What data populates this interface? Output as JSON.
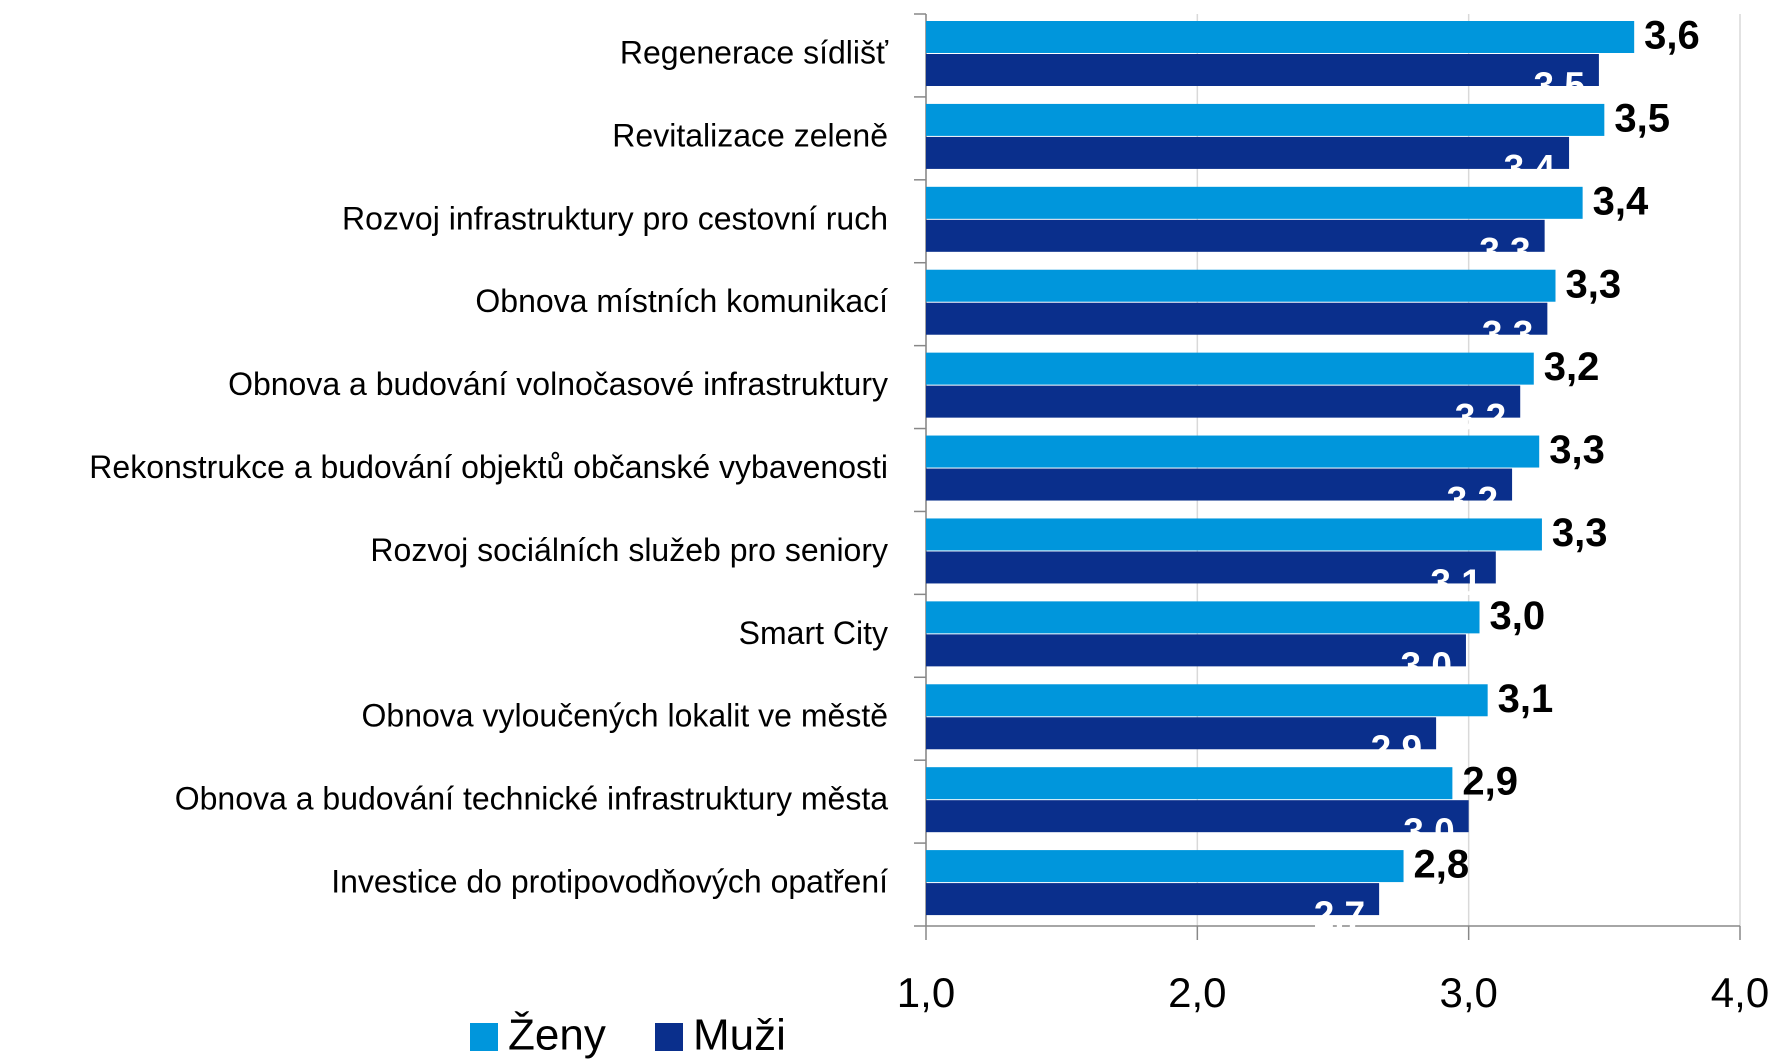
{
  "chart_data": {
    "type": "hbar",
    "categories": [
      "Regenerace sídlišť",
      "Revitalizace zeleně",
      "Rozvoj infrastruktury pro cestovní ruch",
      "Obnova místních komunikací",
      "Obnova a budování volnočasové infrastruktury",
      "Rekonstrukce a budování objektů občanské vybavenosti",
      "Rozvoj sociálních služeb pro seniory",
      "Smart City",
      "Obnova vyloučených lokalit ve městě",
      "Obnova a budování technické infrastruktury města",
      "Investice do protipovodňových opatření"
    ],
    "series": [
      {
        "name": "Ženy",
        "color": "#0096dc",
        "values": [
          3.61,
          3.5,
          3.42,
          3.32,
          3.24,
          3.26,
          3.27,
          3.04,
          3.07,
          2.94,
          2.76
        ],
        "value_labels": [
          "3,6",
          "3,5",
          "3,4",
          "3,3",
          "3,2",
          "3,3",
          "3,3",
          "3,0",
          "3,1",
          "2,9",
          "2,8"
        ]
      },
      {
        "name": "Muži",
        "color": "#0a2f8c",
        "values": [
          3.48,
          3.37,
          3.28,
          3.29,
          3.19,
          3.16,
          3.1,
          2.99,
          2.88,
          3.0,
          2.67
        ],
        "value_labels": [
          "3,5",
          "3,4",
          "3,3",
          "3,3",
          "3,2",
          "3,2",
          "3,1",
          "3,0",
          "2,9",
          "3,0",
          "2,7"
        ]
      }
    ],
    "xlim": [
      1,
      4
    ],
    "xticks": [
      {
        "value": 1,
        "label": "1,0"
      },
      {
        "value": 2,
        "label": "2,0"
      },
      {
        "value": 3,
        "label": "3,0"
      },
      {
        "value": 4,
        "label": "4,0"
      }
    ],
    "grid": true,
    "legend": "bottom-left"
  }
}
